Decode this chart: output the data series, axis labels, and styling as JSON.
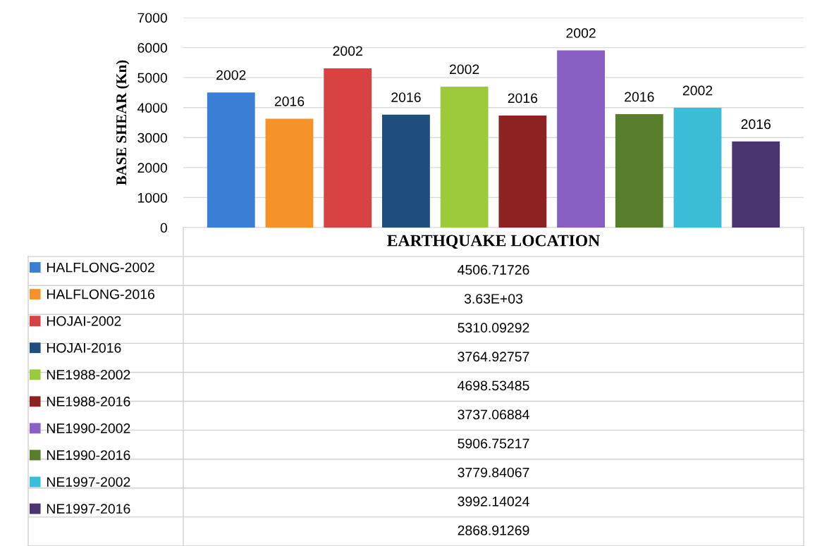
{
  "chart_data": {
    "type": "bar",
    "categories": [
      "EARTHQUAKE LOCATION"
    ],
    "ylabel": "BASE SHEAR (Kn)",
    "ylim": [
      0,
      7000
    ],
    "yticks": [
      0,
      1000,
      2000,
      3000,
      4000,
      5000,
      6000,
      7000
    ],
    "grid": "y",
    "legend": "bottom left",
    "series": [
      {
        "name": "HALFLONG-2002",
        "color": "#3a7fd5",
        "values": [
          4506.71726
        ]
      },
      {
        "name": "HALFLONG-2016",
        "color": "#f5922a",
        "values": [
          3630
        ]
      },
      {
        "name": "HOJAI-2002",
        "color": "#d84242",
        "values": [
          5310.09292
        ]
      },
      {
        "name": "HOJAI-2016",
        "color": "#1f4d7e",
        "values": [
          3764.92757
        ]
      },
      {
        "name": "NE1988-2002",
        "color": "#9cca3c",
        "values": [
          4698.53485
        ]
      },
      {
        "name": "NE1988-2016",
        "color": "#8c2222",
        "values": [
          3737.06884
        ]
      },
      {
        "name": "NE1990-2002",
        "color": "#8a5fc4",
        "values": [
          5906.75217
        ]
      },
      {
        "name": "NE1990-2016",
        "color": "#587d2b",
        "values": [
          3779.84067
        ]
      },
      {
        "name": "NE1997-2002",
        "color": "#3bbdd8",
        "values": [
          3992.14024
        ]
      },
      {
        "name": "NE1997-2016",
        "color": "#4a3570",
        "values": [
          2868.91269
        ]
      }
    ],
    "annotations": [
      "2002",
      "2016",
      "2002",
      "2016",
      "2002",
      "2016",
      "2002",
      "2016",
      "2002",
      "2016",
      "4506.71726",
      "3.63E+03",
      "5310.09292",
      "3764.92757",
      "4698.53485",
      "3737.06884",
      "5906.75217",
      "3779.84067",
      "3992.14024",
      "2868.91269"
    ]
  }
}
